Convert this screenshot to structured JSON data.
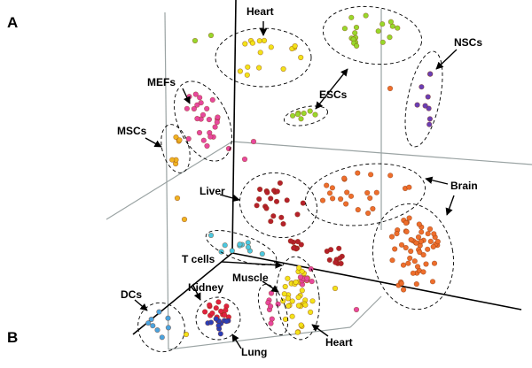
{
  "panels": {
    "a": "A",
    "b": "B"
  },
  "colors": {
    "heart": "#f3e219",
    "esc": "#98d82b",
    "nsc": "#6a3fb4",
    "mef": "#e8489e",
    "msc": "#f0b322",
    "liver": "#b5212b",
    "brain": "#ee6e2c",
    "tcell": "#4cc8e0",
    "muscle": "#e8489e",
    "kidney": "#e0223f",
    "lung": "#2b3fb8",
    "dc": "#4aa3de"
  },
  "labels": {
    "heart_top": "Heart",
    "escs": "ESCs",
    "nscs": "NSCs",
    "mefs": "MEFs",
    "mscs": "MSCs",
    "liver": "Liver",
    "brain": "Brain",
    "tcells": "T cells",
    "muscle": "Muscle",
    "kidney": "Kidney",
    "dcs": "DCs",
    "lung": "Lung",
    "heart_bottom": "Heart"
  }
}
